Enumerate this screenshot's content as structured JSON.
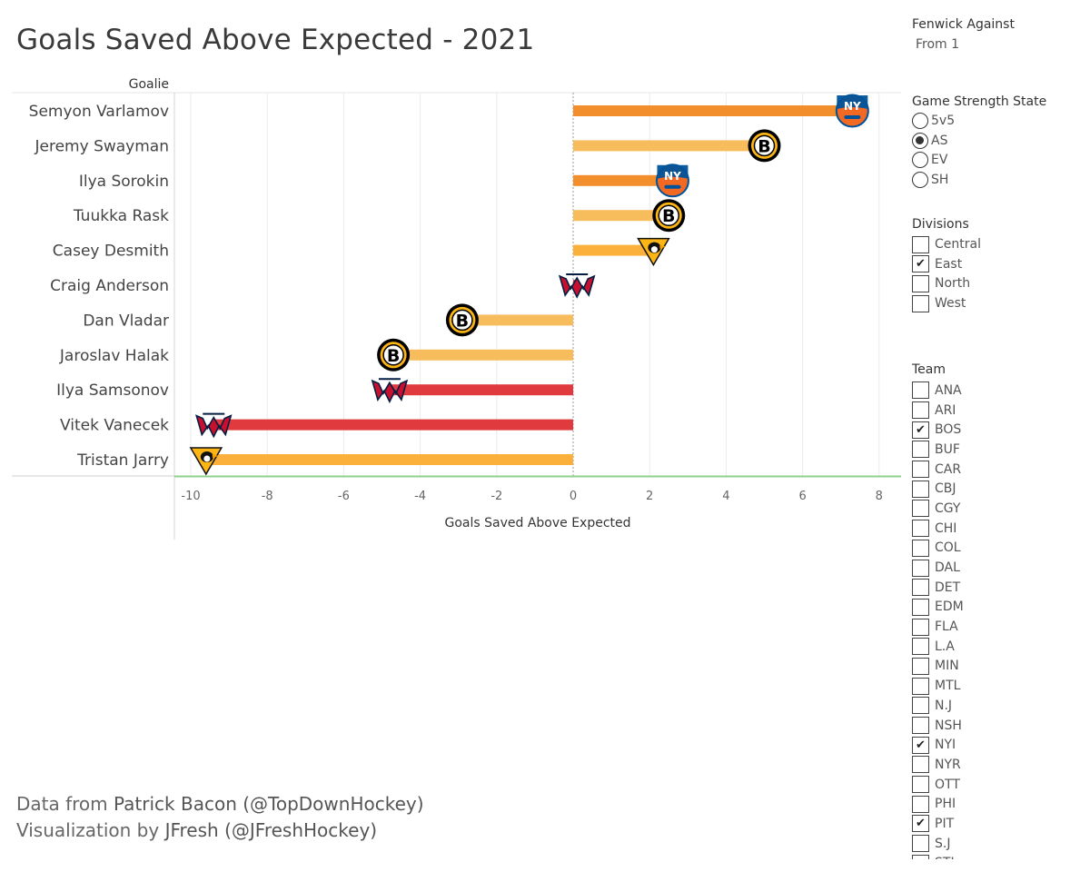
{
  "title": "Goals Saved Above Expected - 2021",
  "fenwick": {
    "title": "Fenwick Against",
    "value": "From 1"
  },
  "strength": {
    "title": "Game Strength State",
    "options": [
      {
        "label": "5v5",
        "selected": false
      },
      {
        "label": "AS",
        "selected": true
      },
      {
        "label": "EV",
        "selected": false
      },
      {
        "label": "SH",
        "selected": false
      }
    ]
  },
  "divisions": {
    "title": "Divisions",
    "options": [
      {
        "label": "Central",
        "checked": false
      },
      {
        "label": "East",
        "checked": true
      },
      {
        "label": "North",
        "checked": false
      },
      {
        "label": "West",
        "checked": false
      }
    ]
  },
  "teams": {
    "title": "Team",
    "options": [
      {
        "label": "ANA",
        "checked": false
      },
      {
        "label": "ARI",
        "checked": false
      },
      {
        "label": "BOS",
        "checked": true
      },
      {
        "label": "BUF",
        "checked": false
      },
      {
        "label": "CAR",
        "checked": false
      },
      {
        "label": "CBJ",
        "checked": false
      },
      {
        "label": "CGY",
        "checked": false
      },
      {
        "label": "CHI",
        "checked": false
      },
      {
        "label": "COL",
        "checked": false
      },
      {
        "label": "DAL",
        "checked": false
      },
      {
        "label": "DET",
        "checked": false
      },
      {
        "label": "EDM",
        "checked": false
      },
      {
        "label": "FLA",
        "checked": false
      },
      {
        "label": "L.A",
        "checked": false
      },
      {
        "label": "MIN",
        "checked": false
      },
      {
        "label": "MTL",
        "checked": false
      },
      {
        "label": "N.J",
        "checked": false
      },
      {
        "label": "NSH",
        "checked": false
      },
      {
        "label": "NYI",
        "checked": true
      },
      {
        "label": "NYR",
        "checked": false
      },
      {
        "label": "OTT",
        "checked": false
      },
      {
        "label": "PHI",
        "checked": false
      },
      {
        "label": "PIT",
        "checked": true
      },
      {
        "label": "S.J",
        "checked": false
      },
      {
        "label": "STL",
        "checked": false
      }
    ]
  },
  "footer": {
    "line1_prefix": "Data from ",
    "line1_name": "Patrick Bacon (@TopDownHockey)",
    "line2_prefix": "Visualization by ",
    "line2_name": "JFresh (@JFreshHockey)"
  },
  "team_colors": {
    "NYI": "#f28e2b",
    "BOS": "#f7bd5c",
    "PIT": "#fbb03b",
    "WSH": "#e03a3e"
  },
  "chart_data": {
    "type": "bar",
    "orientation": "horizontal",
    "title": "",
    "ylabel": "Goalie",
    "xlabel": "Goals Saved Above Expected",
    "xlim": [
      -10.5,
      8.6
    ],
    "xticks": [
      -10,
      -8,
      -6,
      -4,
      -2,
      0,
      2,
      4,
      6,
      8
    ],
    "grid": true,
    "categories": [
      "Semyon Varlamov",
      "Jeremy Swayman",
      "Ilya Sorokin",
      "Tuukka Rask",
      "Casey Desmith",
      "Craig Anderson",
      "Dan Vladar",
      "Jaroslav Halak",
      "Ilya Samsonov",
      "Vitek Vanecek",
      "Tristan Jarry"
    ],
    "values": [
      7.3,
      5.0,
      2.6,
      2.5,
      2.1,
      0.1,
      -2.9,
      -4.7,
      -4.8,
      -9.4,
      -9.6
    ],
    "teams": [
      "NYI",
      "BOS",
      "NYI",
      "BOS",
      "PIT",
      "WSH",
      "BOS",
      "BOS",
      "WSH",
      "WSH",
      "PIT"
    ]
  }
}
